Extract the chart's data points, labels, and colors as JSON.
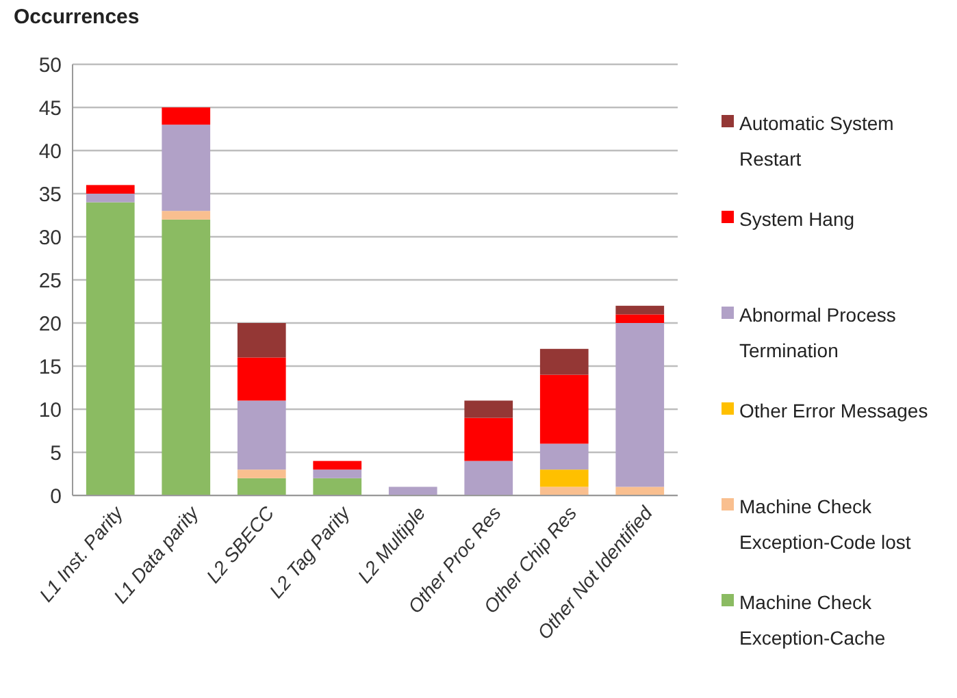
{
  "chart_data": {
    "type": "bar",
    "stacked": true,
    "ylabel": "Occurrences",
    "categories": [
      "L1 Inst. Parity",
      "L1 Data parity",
      "L2 SBECC",
      "L2 Tag Parity",
      "L2 Multiple",
      "Other Proc Res",
      "Other Chip Res",
      "Other Not Identified"
    ],
    "series": [
      {
        "name": "Machine Check Exception-Cache",
        "color": "#8bbb62",
        "values": [
          34,
          32,
          2,
          2,
          0,
          0,
          0,
          0
        ]
      },
      {
        "name": "Machine Check Exception-Code lost",
        "color": "#f9bf8f",
        "values": [
          0,
          1,
          1,
          0,
          0,
          0,
          1,
          1
        ]
      },
      {
        "name": "Other Error Messages",
        "color": "#ffc000",
        "values": [
          0,
          0,
          0,
          0,
          0,
          0,
          2,
          0
        ]
      },
      {
        "name": "Abnormal Process Termination",
        "color": "#b1a1c7",
        "values": [
          1,
          10,
          8,
          1,
          1,
          4,
          3,
          19
        ]
      },
      {
        "name": "System Hang",
        "color": "#ff0000",
        "values": [
          1,
          2,
          5,
          1,
          0,
          5,
          8,
          1
        ]
      },
      {
        "name": "Automatic System Restart",
        "color": "#943735",
        "values": [
          0,
          0,
          4,
          0,
          0,
          2,
          3,
          1
        ]
      }
    ],
    "ylim": [
      0,
      50
    ],
    "yticks": [
      0,
      5,
      10,
      15,
      20,
      25,
      30,
      35,
      40,
      45,
      50
    ],
    "grid": "y",
    "legend": "right"
  }
}
